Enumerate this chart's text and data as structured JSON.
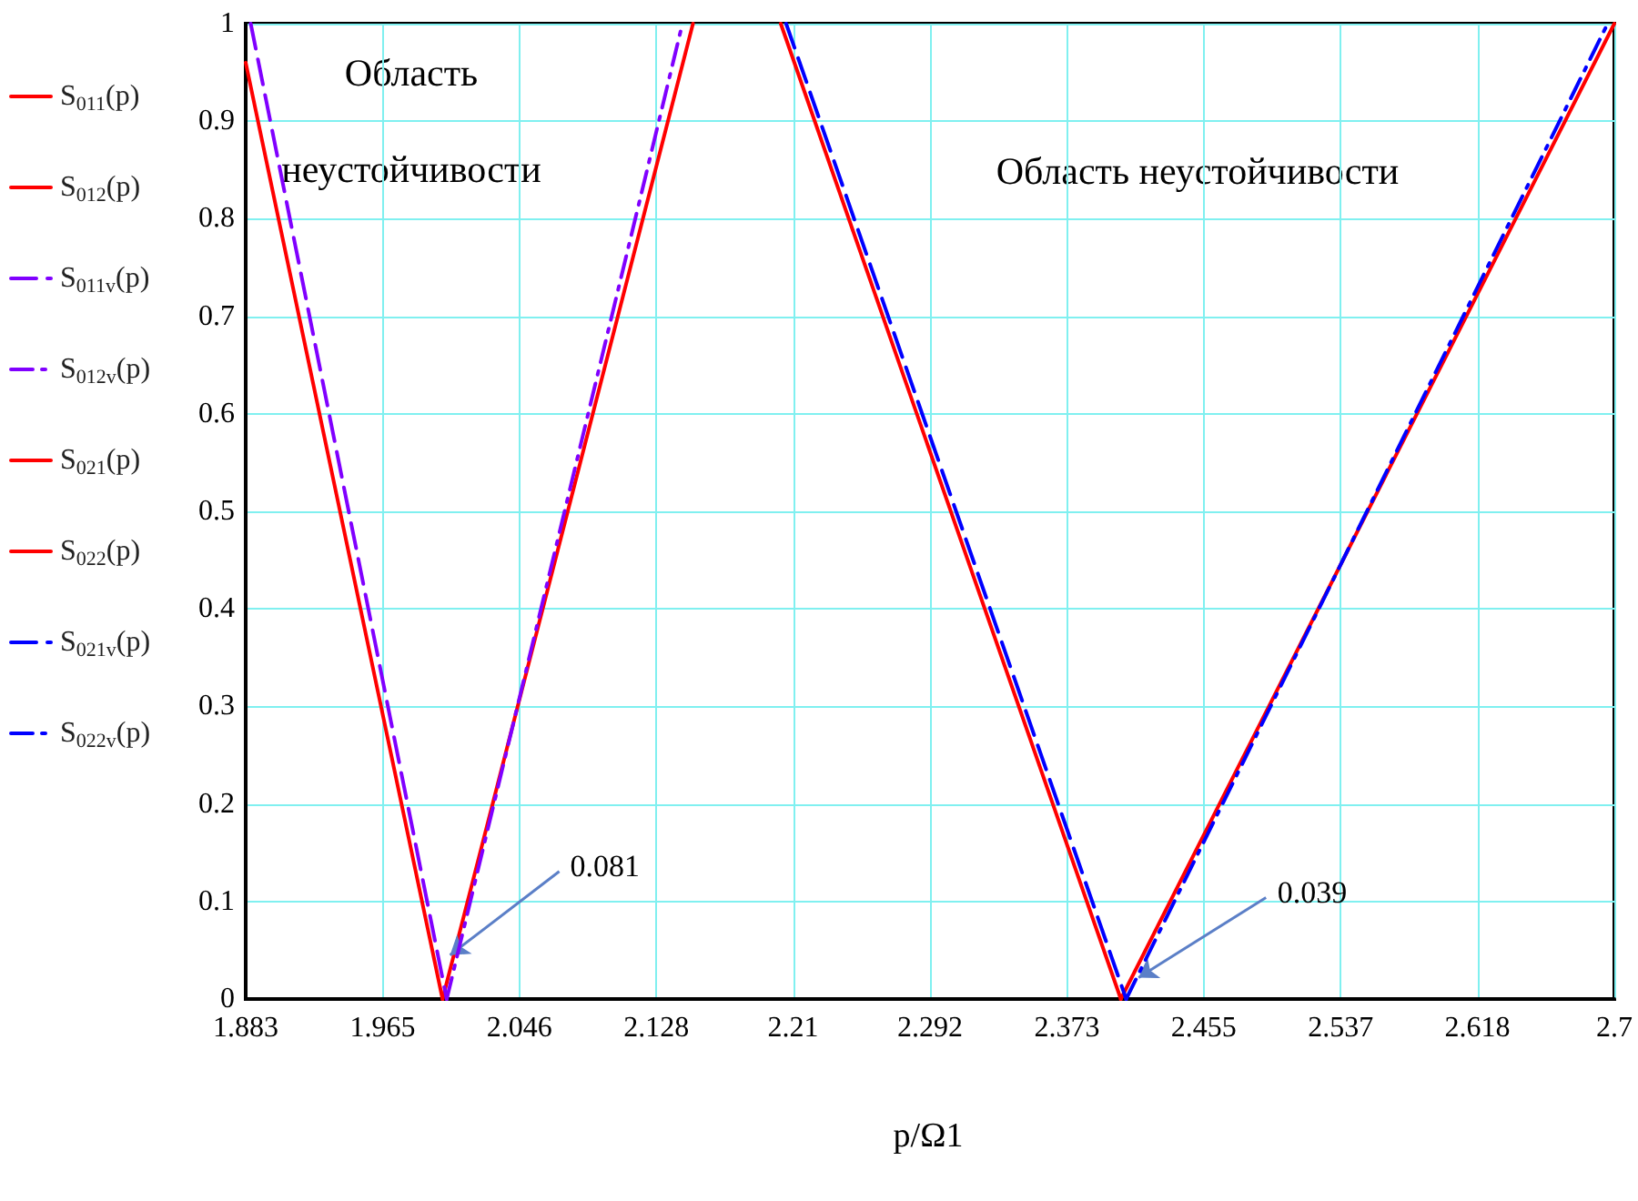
{
  "chart_data": {
    "type": "line",
    "xlabel": "p/Ω1",
    "xlim": [
      1.883,
      2.7
    ],
    "xticks": [
      {
        "value": 1.883,
        "label": "1.883"
      },
      {
        "value": 1.9647,
        "label": "1.965"
      },
      {
        "value": 2.0464,
        "label": "2.046"
      },
      {
        "value": 2.1281,
        "label": "2.128"
      },
      {
        "value": 2.2098,
        "label": "2.21"
      },
      {
        "value": 2.2915,
        "label": "2.292"
      },
      {
        "value": 2.3732,
        "label": "2.373"
      },
      {
        "value": 2.4549,
        "label": "2.455"
      },
      {
        "value": 2.5366,
        "label": "2.537"
      },
      {
        "value": 2.6183,
        "label": "2.618"
      },
      {
        "value": 2.7,
        "label": "2.7"
      }
    ],
    "ylim": [
      0,
      1
    ],
    "yticks": [
      0,
      0.1,
      0.2,
      0.3,
      0.4,
      0.5,
      0.6,
      0.7,
      0.8,
      0.9,
      1
    ],
    "grid": true,
    "legend": "left",
    "marker": "none",
    "series": [
      {
        "name": "S$_{011}$(p)",
        "color": "#ff0000",
        "line_style": "solid",
        "x": [
          1.883,
          2.0005
        ],
        "values": [
          0.96,
          0
        ]
      },
      {
        "name": "S$_{012}$(p)",
        "color": "#ff0000",
        "line_style": "solid",
        "x": [
          2.0005,
          2.15
        ],
        "values": [
          0,
          1
        ]
      },
      {
        "name": "S$_{011v}$(p)",
        "color": "#8000ff",
        "line_style": "dashed",
        "x": [
          1.886,
          2.003
        ],
        "values": [
          1,
          0
        ]
      },
      {
        "name": "S$_{012v}$(p)",
        "color": "#8000ff",
        "line_style": "dashdot",
        "x": [
          2.003,
          2.1437
        ],
        "values": [
          0,
          1
        ]
      },
      {
        "name": "S$_{021}$(p)",
        "color": "#ff0000",
        "line_style": "solid",
        "x": [
          2.2024,
          2.4054
        ],
        "values": [
          1,
          0
        ]
      },
      {
        "name": "S$_{022}$(p)",
        "color": "#ff0000",
        "line_style": "solid",
        "x": [
          2.4054,
          2.7
        ],
        "values": [
          0,
          1
        ]
      },
      {
        "name": "S$_{021v}$(p)",
        "color": "#0000ff",
        "line_style": "dashed",
        "x": [
          2.2056,
          2.4086
        ],
        "values": [
          1,
          0
        ]
      },
      {
        "name": "S$_{022v}$(p)",
        "color": "#0000ff",
        "line_style": "dashdot",
        "x": [
          2.4086,
          2.696
        ],
        "values": [
          0,
          1
        ]
      }
    ],
    "annotations": [
      "Область неустойчивости",
      "Область неустойчивости",
      {
        "text": "0.081",
        "x": 2.005,
        "y": 0.045
      },
      {
        "text": "0.039",
        "x": 2.416,
        "y": 0.022
      }
    ]
  }
}
